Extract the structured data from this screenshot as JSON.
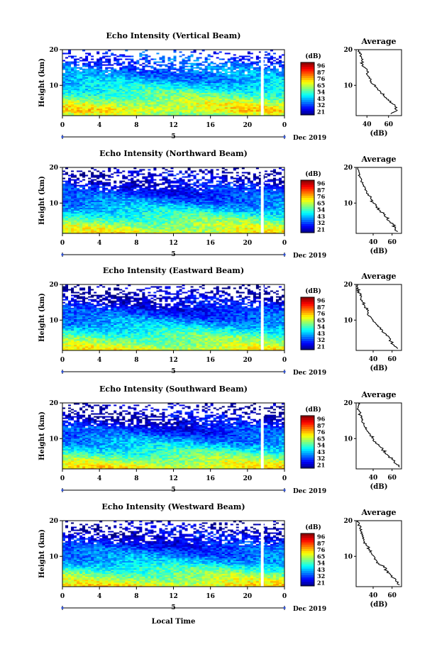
{
  "figure": {
    "xlabel": "Local Time",
    "month_label": "Dec 2019",
    "date_label": "5",
    "ylabel": "Height (km)",
    "avg_title": "Average",
    "avg_xlabel": "(dB)",
    "colorbar_unit": "(dB)",
    "colorbar_ticks": [
      "96",
      "87",
      "76",
      "65",
      "54",
      "43",
      "32",
      "21"
    ]
  },
  "chart_data": [
    {
      "type": "heatmap",
      "title": "Echo Intensity (Vertical Beam)",
      "xlabel": "Local Time",
      "ylabel": "Height (km)",
      "x_ticks": [
        "0",
        "4",
        "8",
        "12",
        "16",
        "20",
        "0"
      ],
      "xlim": [
        0,
        24
      ],
      "y_ticks": [
        "10",
        "20"
      ],
      "ylim": [
        1.5,
        20
      ],
      "colorbar": {
        "label": "(dB)",
        "range": [
          21,
          96
        ],
        "ticks": [
          "96",
          "87",
          "76",
          "65",
          "54",
          "43",
          "32",
          "21"
        ]
      },
      "data_gap_hour": 21.6,
      "average_profile": {
        "title": "Average",
        "xlabel": "(dB)",
        "x_ticks": [
          "40",
          "60"
        ],
        "xlim": [
          30,
          72
        ],
        "height_km": [
          2,
          3,
          4,
          5,
          6,
          7,
          8,
          9,
          10,
          11,
          12,
          13,
          14,
          15,
          16,
          17,
          18,
          19,
          20
        ],
        "values_db": [
          62,
          68,
          66,
          63,
          60,
          56,
          53,
          50,
          48,
          44,
          42,
          40,
          40,
          38,
          36,
          35,
          35,
          33,
          32
        ]
      }
    },
    {
      "type": "heatmap",
      "title": "Echo Intensity (Northward Beam)",
      "xlabel": "Local Time",
      "ylabel": "Height (km)",
      "x_ticks": [
        "0",
        "4",
        "8",
        "12",
        "16",
        "20",
        "0"
      ],
      "xlim": [
        0,
        24
      ],
      "y_ticks": [
        "10",
        "20"
      ],
      "ylim": [
        1.5,
        20
      ],
      "colorbar": {
        "label": "(dB)",
        "range": [
          21,
          96
        ],
        "ticks": [
          "96",
          "87",
          "76",
          "65",
          "54",
          "43",
          "32",
          "21"
        ]
      },
      "data_gap_hour": 21.6,
      "average_profile": {
        "title": "Average",
        "xlabel": "(dB)",
        "x_ticks": [
          "40",
          "60"
        ],
        "xlim": [
          22,
          70
        ],
        "height_km": [
          2,
          3,
          4,
          5,
          6,
          7,
          8,
          9,
          10,
          11,
          12,
          13,
          14,
          15,
          16,
          17,
          18,
          19,
          20
        ],
        "values_db": [
          66,
          63,
          61,
          57,
          54,
          51,
          47,
          44,
          40,
          38,
          36,
          33,
          32,
          30,
          27,
          27,
          26,
          25,
          24
        ]
      }
    },
    {
      "type": "heatmap",
      "title": "Echo Intensity (Eastward Beam)",
      "xlabel": "Local Time",
      "ylabel": "Height (km)",
      "x_ticks": [
        "0",
        "4",
        "8",
        "12",
        "16",
        "20",
        "0"
      ],
      "xlim": [
        0,
        24
      ],
      "y_ticks": [
        "10",
        "20"
      ],
      "ylim": [
        1.5,
        20
      ],
      "colorbar": {
        "label": "(dB)",
        "range": [
          21,
          96
        ],
        "ticks": [
          "96",
          "87",
          "76",
          "65",
          "54",
          "43",
          "32",
          "21"
        ]
      },
      "data_gap_hour": 21.6,
      "average_profile": {
        "title": "Average",
        "xlabel": "(dB)",
        "x_ticks": [
          "40",
          "60"
        ],
        "xlim": [
          22,
          70
        ],
        "height_km": [
          2,
          3,
          4,
          5,
          6,
          7,
          8,
          9,
          10,
          11,
          12,
          13,
          14,
          15,
          16,
          17,
          18,
          19,
          20
        ],
        "values_db": [
          66,
          62,
          59,
          57,
          54,
          50,
          47,
          43,
          40,
          37,
          35,
          33,
          31,
          29,
          27,
          26,
          25,
          24,
          24
        ]
      }
    },
    {
      "type": "heatmap",
      "title": "Echo Intensity (Southward Beam)",
      "xlabel": "Local Time",
      "ylabel": "Height (km)",
      "x_ticks": [
        "0",
        "4",
        "8",
        "12",
        "16",
        "20",
        "0"
      ],
      "xlim": [
        0,
        24
      ],
      "y_ticks": [
        "10",
        "20"
      ],
      "ylim": [
        1.5,
        20
      ],
      "colorbar": {
        "label": "(dB)",
        "range": [
          21,
          96
        ],
        "ticks": [
          "96",
          "87",
          "76",
          "65",
          "54",
          "43",
          "32",
          "21"
        ]
      },
      "data_gap_hour": 21.6,
      "average_profile": {
        "title": "Average",
        "xlabel": "(dB)",
        "x_ticks": [
          "40",
          "60"
        ],
        "xlim": [
          22,
          70
        ],
        "height_km": [
          2,
          3,
          4,
          5,
          6,
          7,
          8,
          9,
          10,
          11,
          12,
          13,
          14,
          15,
          16,
          17,
          18,
          19,
          20
        ],
        "values_db": [
          68,
          64,
          61,
          57,
          53,
          50,
          46,
          43,
          40,
          37,
          34,
          33,
          30,
          28,
          27,
          26,
          25,
          24,
          24
        ]
      }
    },
    {
      "type": "heatmap",
      "title": "Echo Intensity (Westward Beam)",
      "xlabel": "Local Time",
      "ylabel": "Height (km)",
      "x_ticks": [
        "0",
        "4",
        "8",
        "12",
        "16",
        "20",
        "0"
      ],
      "xlim": [
        0,
        24
      ],
      "y_ticks": [
        "10",
        "20"
      ],
      "ylim": [
        1.5,
        20
      ],
      "colorbar": {
        "label": "(dB)",
        "range": [
          21,
          96
        ],
        "ticks": [
          "96",
          "87",
          "76",
          "65",
          "54",
          "43",
          "32",
          "21"
        ]
      },
      "data_gap_hour": 21.6,
      "average_profile": {
        "title": "Average",
        "xlabel": "(dB)",
        "x_ticks": [
          "40",
          "60"
        ],
        "xlim": [
          22,
          70
        ],
        "height_km": [
          2,
          3,
          4,
          5,
          6,
          7,
          8,
          9,
          10,
          11,
          12,
          13,
          14,
          15,
          16,
          17,
          18,
          19,
          20
        ],
        "values_db": [
          68,
          64,
          61,
          58,
          54,
          51,
          46,
          43,
          41,
          38,
          36,
          33,
          31,
          29,
          28,
          27,
          26,
          25,
          24
        ]
      }
    }
  ]
}
